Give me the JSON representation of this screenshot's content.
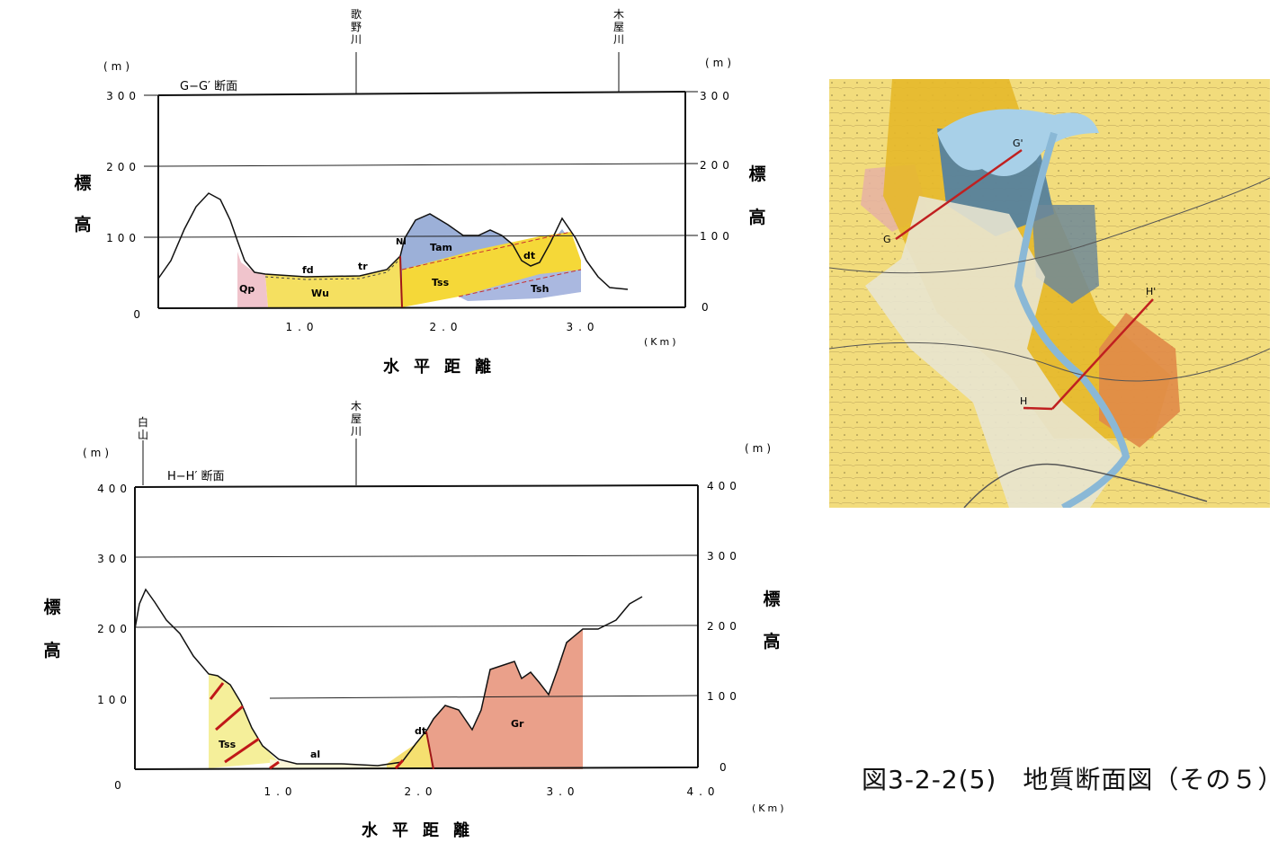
{
  "figure_caption": "図3-2-2(5)　地質断面図（その５）",
  "units": {
    "m": "(m)",
    "km": "(Km)"
  },
  "vertical_label": [
    "標",
    "高"
  ],
  "horizontal_label": "水平距離",
  "gg": {
    "title": "G−G′ 断面",
    "river_left": "歌野川",
    "river_right": "木屋川",
    "y_ticks": [
      "300",
      "200",
      "100",
      "0"
    ],
    "y_ticks_right": [
      "300",
      "200",
      "100",
      "0"
    ],
    "x_ticks": [
      "1.0",
      "2.0",
      "3.0"
    ],
    "units": [
      "Qp",
      "Wu",
      "fd",
      "tr",
      "Nl",
      "Tam",
      "Tss",
      "dt",
      "Tsh"
    ]
  },
  "hh": {
    "title": "H−H′ 断面",
    "peak": "白山",
    "river": "木屋川",
    "y_ticks": [
      "400",
      "300",
      "200",
      "100",
      "0"
    ],
    "y_ticks_right": [
      "400",
      "300",
      "200",
      "100",
      "0"
    ],
    "x_ticks": [
      "0",
      "1.0",
      "2.0",
      "3.0",
      "4.0"
    ],
    "units": [
      "Tss",
      "al",
      "dt",
      "Gr"
    ]
  },
  "map": {
    "labels": [
      "G",
      "G'",
      "H",
      "H'"
    ],
    "colors": {
      "yellow": "#f0d870",
      "deep_yellow": "#e8b820",
      "blue": "#4a7fa6",
      "orange": "#e08a50",
      "pink": "#e8b0a0",
      "lake": "#a8d0e8",
      "line": "#c02020"
    }
  }
}
